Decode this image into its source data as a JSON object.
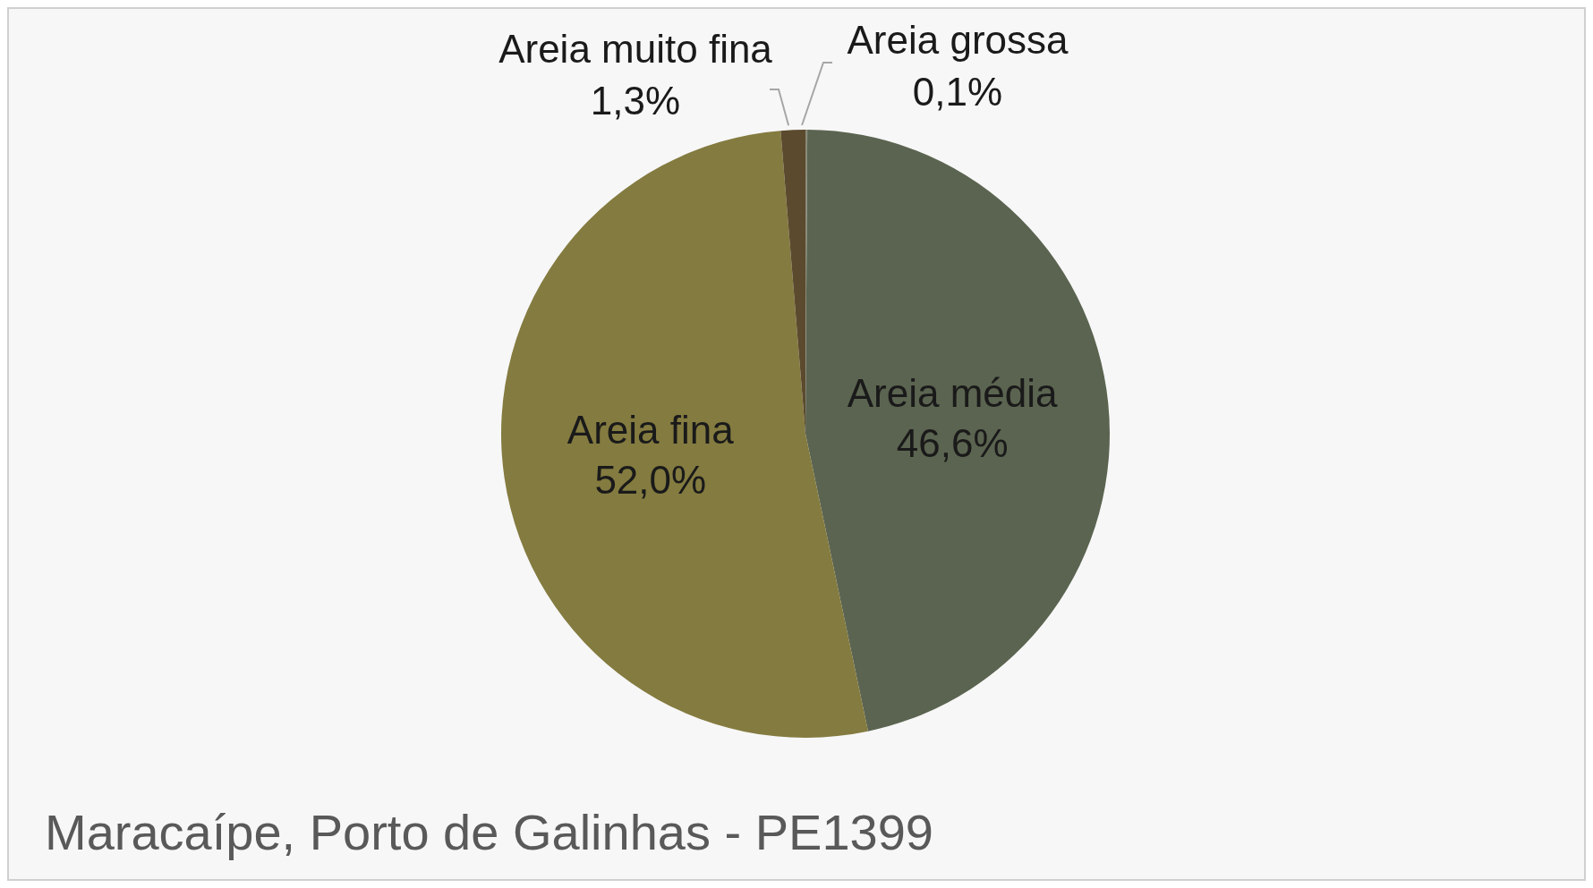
{
  "chart_data": {
    "type": "pie",
    "title": "Maracaípe, Porto de Galinhas - PE1399",
    "categories": [
      "Areia grossa",
      "Areia média",
      "Areia fina",
      "Areia muito fina"
    ],
    "values": [
      0.1,
      46.6,
      52.0,
      1.3
    ],
    "colors": [
      "#8a8a78",
      "#5b6450",
      "#847b40",
      "#5c4a2e"
    ],
    "value_labels": [
      "0,1%",
      "46,6%",
      "52,0%",
      "1,3%"
    ]
  }
}
